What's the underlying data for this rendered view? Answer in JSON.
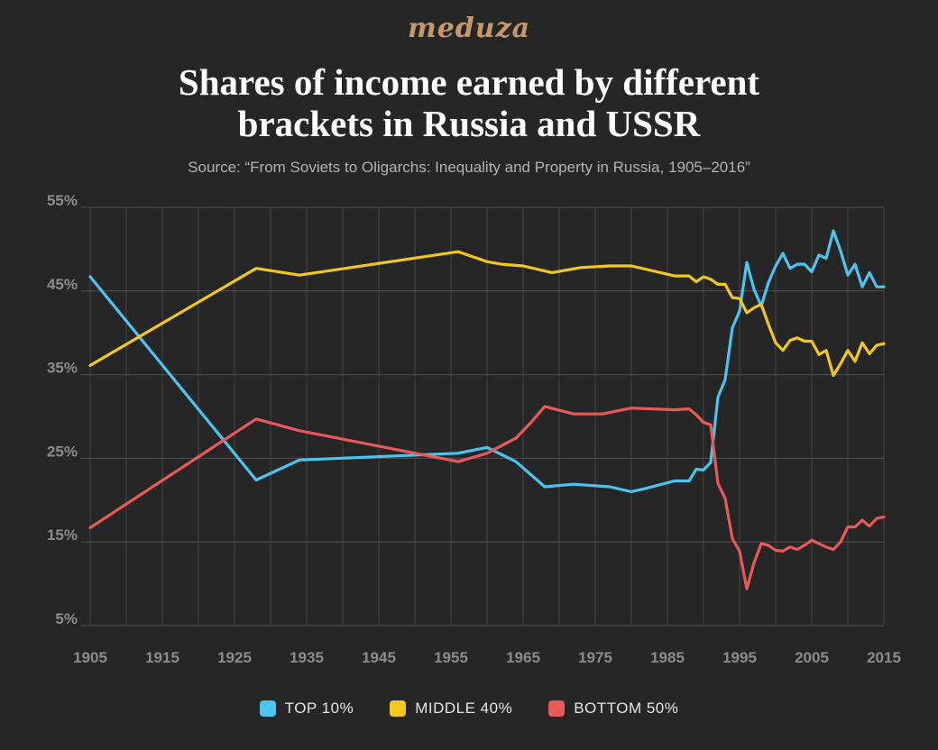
{
  "header": {
    "brand": "meduza",
    "title_line1": "Shares of income earned by different",
    "title_line2": "brackets in Russia and USSR",
    "subtitle": "Source: “From Soviets to Oligarchs: Inequality and Property in Russia, 1905–2016”"
  },
  "chart_data": {
    "type": "line",
    "title": "Shares of income earned by different brackets in Russia and USSR",
    "xlim": [
      1905,
      2015
    ],
    "ylim": [
      5,
      55
    ],
    "x_ticks": [
      1905,
      1915,
      1925,
      1935,
      1945,
      1955,
      1965,
      1975,
      1985,
      1995,
      2005,
      2015
    ],
    "y_ticks": [
      {
        "value": 5,
        "label": "5%"
      },
      {
        "value": 15,
        "label": "15%"
      },
      {
        "value": 25,
        "label": "25%"
      },
      {
        "value": 35,
        "label": "35%"
      },
      {
        "value": 45,
        "label": "45%"
      },
      {
        "value": 55,
        "label": "55%"
      }
    ],
    "grid": true,
    "legend_position": "bottom",
    "series": [
      {
        "name": "TOP 10%",
        "color": "#4cc4f0",
        "points": [
          [
            1905,
            46.7
          ],
          [
            1928,
            22.4
          ],
          [
            1934,
            24.8
          ],
          [
            1956,
            25.6
          ],
          [
            1960,
            26.3
          ],
          [
            1964,
            24.6
          ],
          [
            1968,
            21.6
          ],
          [
            1972,
            21.9
          ],
          [
            1977,
            21.6
          ],
          [
            1980,
            21.0
          ],
          [
            1982,
            21.4
          ],
          [
            1986,
            22.3
          ],
          [
            1987,
            22.3
          ],
          [
            1988,
            22.3
          ],
          [
            1989,
            23.7
          ],
          [
            1990,
            23.6
          ],
          [
            1991,
            24.5
          ],
          [
            1992,
            32.3
          ],
          [
            1993,
            34.4
          ],
          [
            1994,
            40.6
          ],
          [
            1995,
            42.6
          ],
          [
            1996,
            48.4
          ],
          [
            1997,
            45.2
          ],
          [
            1998,
            43.2
          ],
          [
            1999,
            46.0
          ],
          [
            2000,
            48.0
          ],
          [
            2001,
            49.5
          ],
          [
            2002,
            47.7
          ],
          [
            2003,
            48.2
          ],
          [
            2004,
            48.2
          ],
          [
            2005,
            47.3
          ],
          [
            2006,
            49.3
          ],
          [
            2007,
            48.9
          ],
          [
            2008,
            52.2
          ],
          [
            2009,
            49.8
          ],
          [
            2010,
            46.9
          ],
          [
            2011,
            48.2
          ],
          [
            2012,
            45.5
          ],
          [
            2013,
            47.2
          ],
          [
            2014,
            45.5
          ],
          [
            2015,
            45.5
          ]
        ]
      },
      {
        "name": "MIDDLE 40%",
        "color": "#f2c81c",
        "points": [
          [
            1905,
            36.1
          ],
          [
            1928,
            47.7
          ],
          [
            1934,
            46.9
          ],
          [
            1956,
            49.7
          ],
          [
            1960,
            48.5
          ],
          [
            1962,
            48.2
          ],
          [
            1965,
            48.0
          ],
          [
            1969,
            47.2
          ],
          [
            1973,
            47.8
          ],
          [
            1977,
            48.0
          ],
          [
            1980,
            48.0
          ],
          [
            1986,
            46.8
          ],
          [
            1988,
            46.8
          ],
          [
            1989,
            46.1
          ],
          [
            1990,
            46.7
          ],
          [
            1991,
            46.4
          ],
          [
            1992,
            45.8
          ],
          [
            1993,
            45.8
          ],
          [
            1994,
            44.2
          ],
          [
            1995,
            44.1
          ],
          [
            1996,
            42.4
          ],
          [
            1997,
            43.0
          ],
          [
            1998,
            43.4
          ],
          [
            1999,
            41.0
          ],
          [
            2000,
            38.8
          ],
          [
            2001,
            37.9
          ],
          [
            2002,
            39.1
          ],
          [
            2003,
            39.4
          ],
          [
            2004,
            39.0
          ],
          [
            2005,
            39.0
          ],
          [
            2006,
            37.4
          ],
          [
            2007,
            37.9
          ],
          [
            2008,
            34.9
          ],
          [
            2009,
            36.3
          ],
          [
            2010,
            37.9
          ],
          [
            2011,
            36.6
          ],
          [
            2012,
            38.8
          ],
          [
            2013,
            37.5
          ],
          [
            2014,
            38.5
          ],
          [
            2015,
            38.7
          ]
        ]
      },
      {
        "name": "BOTTOM 50%",
        "color": "#e85a5a",
        "points": [
          [
            1905,
            16.7
          ],
          [
            1928,
            29.7
          ],
          [
            1934,
            28.3
          ],
          [
            1956,
            24.6
          ],
          [
            1960,
            25.6
          ],
          [
            1964,
            27.4
          ],
          [
            1966,
            29.2
          ],
          [
            1968,
            31.2
          ],
          [
            1972,
            30.3
          ],
          [
            1976,
            30.3
          ],
          [
            1980,
            31.0
          ],
          [
            1986,
            30.8
          ],
          [
            1988,
            30.9
          ],
          [
            1989,
            30.2
          ],
          [
            1990,
            29.3
          ],
          [
            1991,
            29.0
          ],
          [
            1992,
            22.0
          ],
          [
            1993,
            20.2
          ],
          [
            1994,
            15.4
          ],
          [
            1995,
            13.9
          ],
          [
            1996,
            9.4
          ],
          [
            1997,
            12.5
          ],
          [
            1998,
            14.8
          ],
          [
            1999,
            14.6
          ],
          [
            2000,
            14.0
          ],
          [
            2001,
            13.9
          ],
          [
            2002,
            14.4
          ],
          [
            2003,
            14.1
          ],
          [
            2004,
            14.6
          ],
          [
            2005,
            15.2
          ],
          [
            2006,
            14.8
          ],
          [
            2007,
            14.4
          ],
          [
            2008,
            14.1
          ],
          [
            2009,
            15.0
          ],
          [
            2010,
            16.8
          ],
          [
            2011,
            16.8
          ],
          [
            2012,
            17.6
          ],
          [
            2013,
            16.9
          ],
          [
            2014,
            17.8
          ],
          [
            2015,
            18.0
          ]
        ]
      }
    ]
  }
}
